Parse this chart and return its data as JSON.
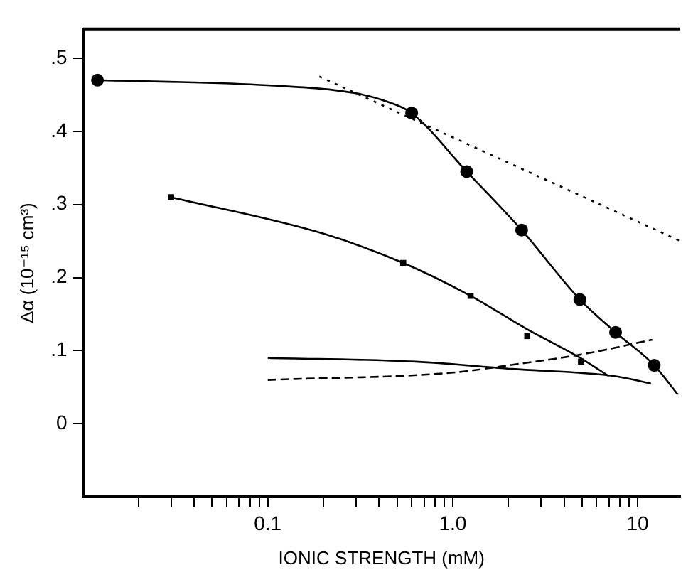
{
  "chart_data": {
    "type": "line",
    "xlabel": "IONIC STRENGTH (mM)",
    "ylabel": "Δα (10⁻¹⁵ cm³)",
    "log": "x",
    "xlim": [
      0.01,
      17
    ],
    "ylim": [
      -0.1,
      0.54
    ],
    "xticks": [
      {
        "value": 0.02,
        "label": null
      },
      {
        "value": 0.03,
        "label": null
      },
      {
        "value": 0.04,
        "label": null
      },
      {
        "value": 0.05,
        "label": null
      },
      {
        "value": 0.06,
        "label": null
      },
      {
        "value": 0.07,
        "label": null
      },
      {
        "value": 0.08,
        "label": null
      },
      {
        "value": 0.09,
        "label": null
      },
      {
        "value": 0.1,
        "label": "0.1"
      },
      {
        "value": 0.2,
        "label": null
      },
      {
        "value": 0.3,
        "label": null
      },
      {
        "value": 0.4,
        "label": null
      },
      {
        "value": 0.5,
        "label": null
      },
      {
        "value": 0.6,
        "label": null
      },
      {
        "value": 0.7,
        "label": null
      },
      {
        "value": 0.8,
        "label": null
      },
      {
        "value": 0.9,
        "label": null
      },
      {
        "value": 1,
        "label": "1.0"
      },
      {
        "value": 2,
        "label": null
      },
      {
        "value": 3,
        "label": null
      },
      {
        "value": 4,
        "label": null
      },
      {
        "value": 5,
        "label": null
      },
      {
        "value": 6,
        "label": null
      },
      {
        "value": 7,
        "label": null
      },
      {
        "value": 8,
        "label": null
      },
      {
        "value": 9,
        "label": null
      },
      {
        "value": 10,
        "label": "10"
      }
    ],
    "yticks": [
      0,
      {
        "value": 0.1,
        "label": ".1"
      },
      {
        "value": 0.2,
        "label": ".2"
      },
      {
        "value": 0.3,
        "label": ".3"
      },
      {
        "value": 0.4,
        "label": ".4"
      },
      {
        "value": 0.5,
        "label": ".5"
      }
    ],
    "series": [
      {
        "type": "scatter",
        "marker": "circle",
        "color": "#000000",
        "x": [
          0.012,
          0.6,
          1.19,
          2.36,
          4.87,
          7.6,
          12.3
        ],
        "values": [
          0.47,
          0.425,
          0.345,
          0.265,
          0.17,
          0.125,
          0.08
        ]
      },
      {
        "type": "line",
        "marker": "none",
        "line_style": "solid",
        "color": "#000000",
        "x": [
          0.012,
          0.1,
          0.3,
          0.45,
          0.6,
          1.19,
          2.36,
          4.87,
          7.6,
          12.3,
          16.5
        ],
        "values": [
          0.47,
          0.463,
          0.452,
          0.44,
          0.425,
          0.345,
          0.265,
          0.17,
          0.125,
          0.08,
          0.04
        ]
      },
      {
        "type": "scatter",
        "marker": "square",
        "color": "#000000",
        "x": [
          0.03,
          0.54,
          1.25,
          2.53,
          4.94
        ],
        "values": [
          0.31,
          0.22,
          0.175,
          0.12,
          0.085
        ]
      },
      {
        "type": "line",
        "marker": "none",
        "line_style": "solid",
        "color": "#000000",
        "x": [
          0.03,
          0.2,
          0.54,
          1.25,
          2.5,
          4.9,
          7
        ],
        "values": [
          0.31,
          0.26,
          0.22,
          0.175,
          0.13,
          0.09,
          0.065
        ]
      },
      {
        "type": "line",
        "marker": "none",
        "line_style": "dotted",
        "color": "#000000",
        "x": [
          0.19,
          17
        ],
        "values": [
          0.475,
          0.25
        ]
      },
      {
        "type": "line",
        "marker": "none",
        "line_style": "solid",
        "color": "#000000",
        "x": [
          0.1,
          0.63,
          2.1,
          7.6,
          11.8
        ],
        "values": [
          0.09,
          0.085,
          0.075,
          0.065,
          0.055
        ]
      },
      {
        "type": "line",
        "marker": "none",
        "line_style": "dashed",
        "color": "#000000",
        "x": [
          0.1,
          1,
          2,
          5,
          12
        ],
        "values": [
          0.06,
          0.07,
          0.08,
          0.095,
          0.115
        ]
      }
    ]
  }
}
